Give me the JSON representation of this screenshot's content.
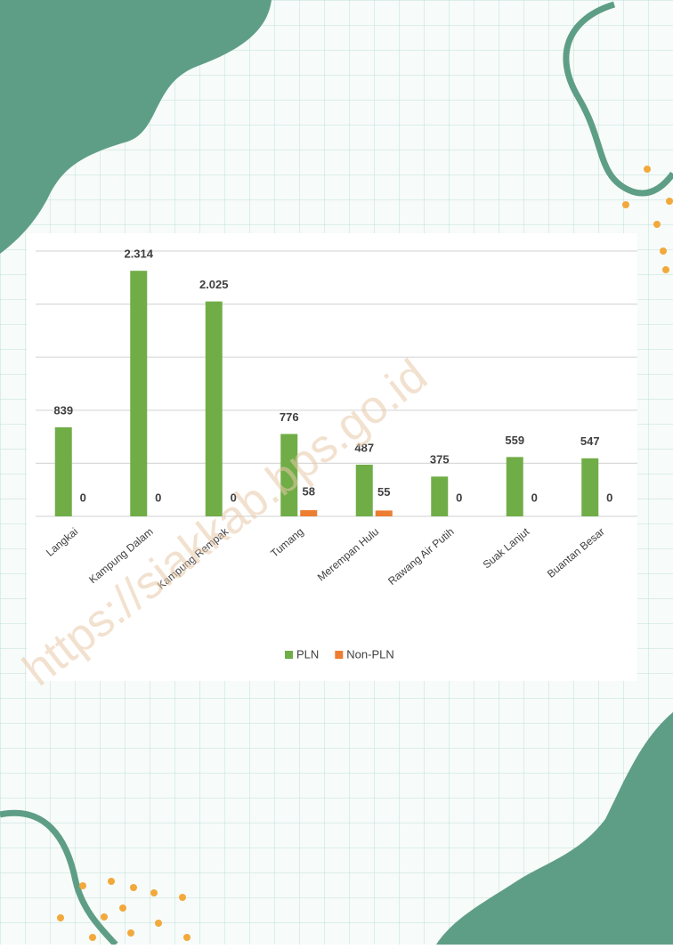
{
  "watermark": "https://siakkab.bps.go.id",
  "chart_data": {
    "type": "bar",
    "categories": [
      "Langkai",
      "Kampung Dalam",
      "Kampung Rempak",
      "Tumang",
      "Merempan Hulu",
      "Rawang Air Putih",
      "Suak Lanjut",
      "Buantan Besar"
    ],
    "series": [
      {
        "name": "PLN",
        "color": "#70ad47",
        "values": [
          839,
          2314,
          2025,
          776,
          487,
          375,
          559,
          547
        ],
        "value_labels": [
          "839",
          "2.314",
          "2.025",
          "776",
          "487",
          "375",
          "559",
          "547"
        ]
      },
      {
        "name": "Non-PLN",
        "color": "#ed7d31",
        "values": [
          0,
          0,
          0,
          58,
          55,
          0,
          0,
          0
        ]
      }
    ],
    "ylim": [
      0,
      2500
    ],
    "yticks": [
      0,
      500,
      1000,
      1500,
      2000,
      2500
    ],
    "grid": true,
    "legend": "bottom"
  }
}
